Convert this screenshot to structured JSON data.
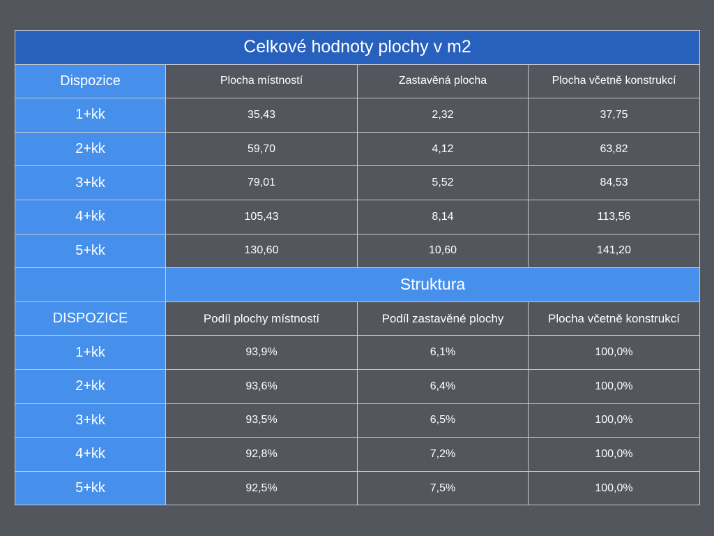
{
  "title": "Celkové hodnoty plochy v m2",
  "section1": {
    "headers": [
      "Dispozice",
      "Plocha místností",
      "Zastavěná plocha",
      "Plocha včetně konstrukcí"
    ],
    "rows": [
      [
        "1+kk",
        "35,43",
        "2,32",
        "37,75"
      ],
      [
        "2+kk",
        "59,70",
        "4,12",
        "63,82"
      ],
      [
        "3+kk",
        "79,01",
        "5,52",
        "84,53"
      ],
      [
        "4+kk",
        "105,43",
        "8,14",
        "113,56"
      ],
      [
        "5+kk",
        "130,60",
        "10,60",
        "141,20"
      ]
    ]
  },
  "section2": {
    "title": "Struktura",
    "headers": [
      "DISPOZICE",
      "Podíl plochy místností",
      "Podíl zastavěné plochy",
      "Plocha včetně konstrukcí"
    ],
    "rows": [
      [
        "1+kk",
        "93,9%",
        "6,1%",
        "100,0%"
      ],
      [
        "2+kk",
        "93,6%",
        "6,4%",
        "100,0%"
      ],
      [
        "3+kk",
        "93,5%",
        "6,5%",
        "100,0%"
      ],
      [
        "4+kk",
        "92,8%",
        "7,2%",
        "100,0%"
      ],
      [
        "5+kk",
        "92,5%",
        "7,5%",
        "100,0%"
      ]
    ]
  },
  "colors": {
    "background": "#54565d",
    "title_blue": "#2760bd",
    "cell_blue": "#4690ec",
    "border": "#c8cad0",
    "text": "#ffffff"
  }
}
